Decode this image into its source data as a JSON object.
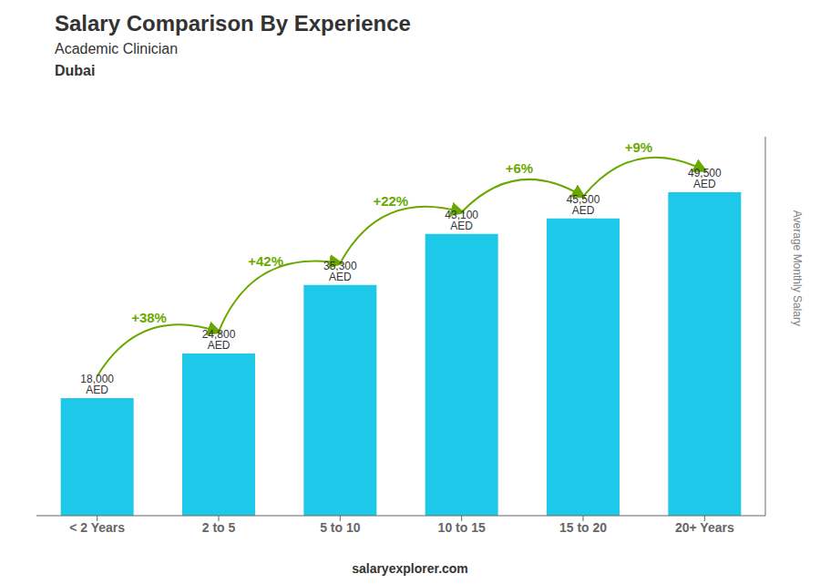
{
  "chart_data": {
    "type": "bar",
    "title": "Salary Comparison By Experience",
    "subtitle": [
      "Academic Clinician",
      "Dubai"
    ],
    "ylabel": "Average Monthly Salary",
    "categories": [
      "< 2 Years",
      "2 to 5",
      "5 to 10",
      "10 to 15",
      "15 to 20",
      "20+ Years"
    ],
    "values": [
      18000,
      24800,
      35300,
      43100,
      45500,
      49500
    ],
    "value_labels": [
      "18,000 AED",
      "24,800 AED",
      "35,300 AED",
      "43,100 AED",
      "45,500 AED",
      "49,500 AED"
    ],
    "data_labels": true,
    "color": "#1ec8e8",
    "ylim": [
      0,
      58000
    ],
    "tick_labels": "x",
    "grid": false,
    "annotations": [
      {
        "from": "< 2 Years",
        "to": "2 to 5",
        "text": "+38%",
        "color": "#6aa800"
      },
      {
        "from": "2 to 5",
        "to": "5 to 10",
        "text": "+42%",
        "color": "#6aa800"
      },
      {
        "from": "5 to 10",
        "to": "10 to 15",
        "text": "+22%",
        "color": "#6aa800"
      },
      {
        "from": "10 to 15",
        "to": "15 to 20",
        "text": "+6%",
        "color": "#6aa800"
      },
      {
        "from": "15 to 20",
        "to": "20+ Years",
        "text": "+9%",
        "color": "#6aa800"
      },
      {
        "text": "salaryexplorer.com"
      }
    ]
  }
}
